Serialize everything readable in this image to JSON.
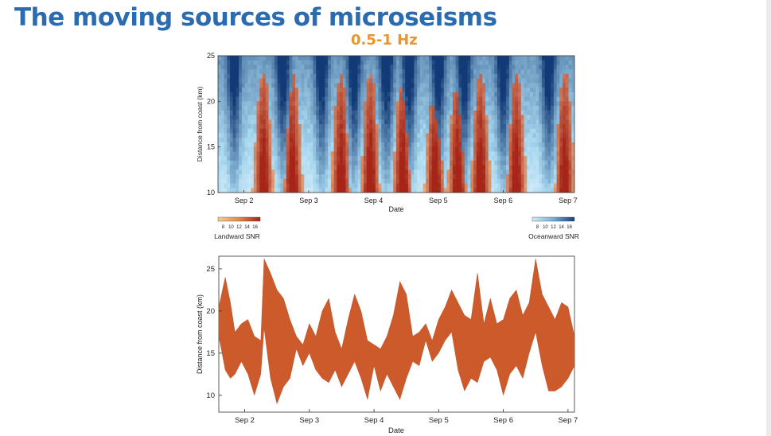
{
  "slide": {
    "title": "The moving sources of microseisms",
    "subtitle": "0.5-1 Hz"
  },
  "colors": {
    "title": "#2b6cb0",
    "subtitle": "#e8952e",
    "landward_dark": "#b2301c",
    "landward_light": "#f2b774",
    "oceanward_light": "#a8d8f0",
    "oceanward_dark": "#1d4f8c",
    "trace_fill": "#cc5a2b"
  },
  "chart_data": [
    {
      "type": "heatmap",
      "title": "",
      "xlabel": "Date",
      "ylabel": "Distance from coast (km)",
      "xlim": [
        "Sep 1.6",
        "Sep 7.1"
      ],
      "ylim": [
        10,
        25
      ],
      "x_ticks": [
        "Sep 2",
        "Sep 3",
        "Sep 4",
        "Sep 5",
        "Sep 6",
        "Sep 7"
      ],
      "y_ticks": [
        10,
        15,
        20,
        25
      ],
      "grid": false,
      "colorbars": [
        {
          "label": "Landward SNR",
          "ticks": [
            "8",
            "10",
            "12",
            "14",
            "16"
          ],
          "placement": "bottom-left"
        },
        {
          "label": "Oceanward SNR",
          "ticks": [
            "8",
            "10",
            "12",
            "14",
            "16"
          ],
          "placement": "bottom-right"
        }
      ],
      "landward_peaks_day": [
        2.3,
        2.75,
        3.5,
        3.95,
        4.45,
        4.95,
        5.3,
        5.65,
        6.2,
        6.95
      ],
      "oceanward_peaks_day": [
        1.85,
        2.6,
        3.2,
        3.7,
        4.2,
        4.55,
        5.0,
        5.4,
        6.0,
        6.7
      ]
    },
    {
      "type": "area",
      "title": "",
      "xlabel": "Date",
      "ylabel": "Distance from coast (km)",
      "xlim": [
        "Sep 1.6",
        "Sep 7.1"
      ],
      "ylim": [
        8,
        26.5
      ],
      "x_ticks": [
        "Sep 2",
        "Sep 3",
        "Sep 4",
        "Sep 5",
        "Sep 6",
        "Sep 7"
      ],
      "y_ticks": [
        10,
        15,
        20,
        25
      ],
      "grid": false,
      "series": [
        {
          "x": [
            1.6,
            1.7,
            1.78,
            1.85,
            1.95,
            2.05,
            2.15,
            2.25,
            2.3,
            2.4,
            2.5,
            2.6,
            2.7,
            2.8,
            2.9,
            3.0,
            3.1,
            3.2,
            3.3,
            3.4,
            3.5,
            3.6,
            3.7,
            3.8,
            3.9,
            4.0,
            4.1,
            4.2,
            4.3,
            4.4,
            4.5,
            4.6,
            4.7,
            4.8,
            4.9,
            5.0,
            5.1,
            5.2,
            5.3,
            5.4,
            5.5,
            5.6,
            5.7,
            5.8,
            5.9,
            6.0,
            6.1,
            6.2,
            6.3,
            6.4,
            6.5,
            6.6,
            6.7,
            6.8,
            6.9,
            7.0,
            7.1
          ],
          "upper": [
            20.5,
            24.0,
            21.0,
            17.5,
            18.5,
            19.0,
            17.0,
            16.5,
            26.2,
            24.5,
            22.5,
            21.5,
            19.0,
            17.0,
            16.0,
            18.5,
            17.0,
            20.0,
            21.5,
            17.5,
            15.5,
            19.0,
            22.0,
            20.0,
            16.5,
            16.0,
            15.5,
            17.0,
            19.5,
            23.5,
            22.0,
            17.0,
            17.5,
            18.5,
            16.5,
            19.0,
            20.5,
            22.5,
            21.0,
            19.5,
            19.0,
            24.5,
            18.5,
            21.5,
            18.5,
            19.0,
            21.5,
            22.5,
            19.5,
            21.0,
            26.2,
            22.0,
            20.5,
            19.0,
            21.0,
            20.5,
            17.0
          ],
          "lower": [
            17.0,
            13.0,
            12.0,
            12.5,
            14.0,
            12.5,
            10.0,
            12.5,
            18.0,
            12.0,
            9.0,
            11.0,
            12.0,
            15.5,
            13.5,
            15.0,
            13.0,
            12.0,
            11.5,
            13.0,
            11.0,
            12.5,
            14.0,
            12.0,
            9.5,
            13.5,
            10.5,
            12.5,
            11.0,
            9.5,
            12.0,
            14.0,
            13.5,
            16.5,
            14.0,
            15.0,
            16.5,
            17.5,
            13.0,
            10.5,
            12.0,
            11.5,
            14.0,
            14.5,
            13.0,
            10.0,
            12.5,
            13.5,
            12.0,
            15.0,
            17.5,
            13.5,
            10.5,
            10.5,
            11.0,
            12.0,
            13.5
          ]
        }
      ]
    }
  ]
}
